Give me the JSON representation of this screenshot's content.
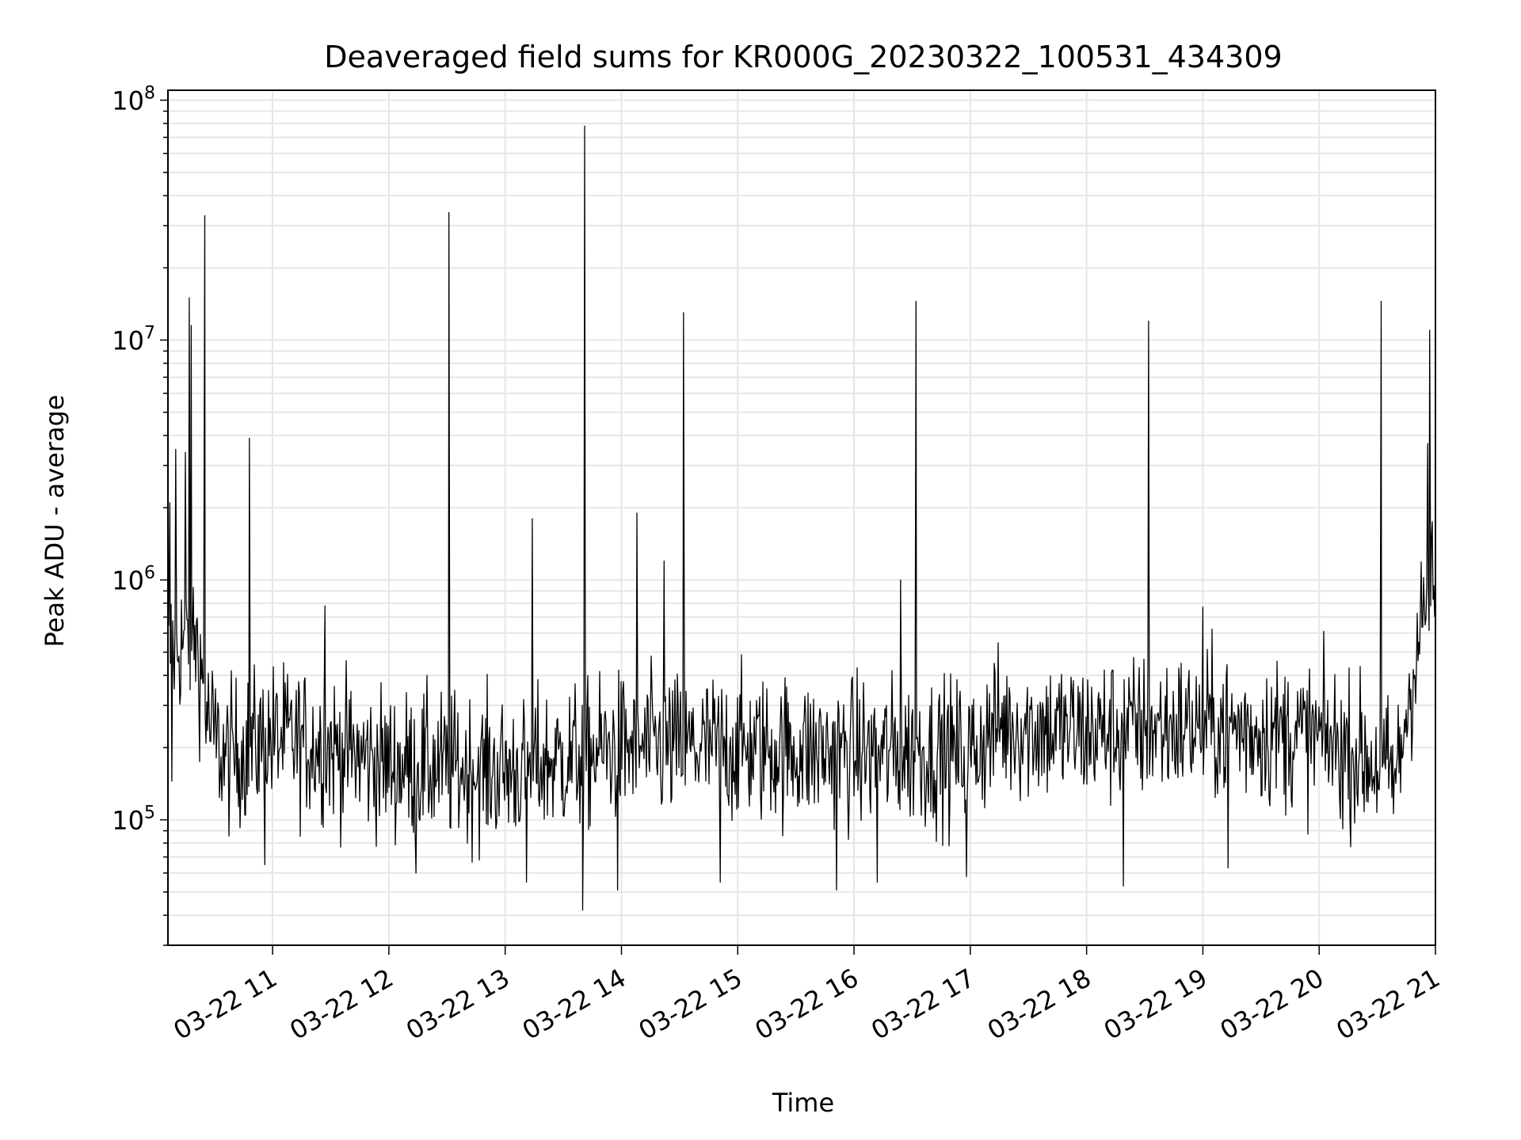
{
  "chart_data": {
    "type": "line",
    "title": "Deaveraged field sums for KR000G_20230322_100531_434309",
    "xlabel": "Time",
    "ylabel": "Peak ADU - average",
    "yscale": "log",
    "ylim": [
      30000,
      110000000
    ],
    "xlim": [
      "2023-03-22 10:06",
      "2023-03-22 21:00"
    ],
    "grid": true,
    "line_color": "#000000",
    "grid_color": "#e6e6e6",
    "x_ticks": [
      {
        "value": "2023-03-22 11:00",
        "label": "03-22 11"
      },
      {
        "value": "2023-03-22 12:00",
        "label": "03-22 12"
      },
      {
        "value": "2023-03-22 13:00",
        "label": "03-22 13"
      },
      {
        "value": "2023-03-22 14:00",
        "label": "03-22 14"
      },
      {
        "value": "2023-03-22 15:00",
        "label": "03-22 15"
      },
      {
        "value": "2023-03-22 16:00",
        "label": "03-22 16"
      },
      {
        "value": "2023-03-22 17:00",
        "label": "03-22 17"
      },
      {
        "value": "2023-03-22 18:00",
        "label": "03-22 18"
      },
      {
        "value": "2023-03-22 19:00",
        "label": "03-22 19"
      },
      {
        "value": "2023-03-22 20:00",
        "label": "03-22 20"
      },
      {
        "value": "2023-03-22 21:00",
        "label": "03-22 21"
      }
    ],
    "y_ticks": [
      {
        "value": 100000,
        "base": "10",
        "exp": "5"
      },
      {
        "value": 1000000,
        "base": "10",
        "exp": "6"
      },
      {
        "value": 10000000,
        "base": "10",
        "exp": "7"
      },
      {
        "value": 100000000,
        "base": "10",
        "exp": "8"
      }
    ],
    "baseline": [
      [
        "2023-03-22 10:06",
        500000
      ],
      [
        "2023-03-22 10:20",
        600000
      ],
      [
        "2023-03-22 10:27",
        250000
      ],
      [
        "2023-03-22 10:35",
        180000
      ],
      [
        "2023-03-22 11:00",
        220000
      ],
      [
        "2023-03-22 11:30",
        200000
      ],
      [
        "2023-03-22 12:00",
        170000
      ],
      [
        "2023-03-22 13:00",
        160000
      ],
      [
        "2023-03-22 14:00",
        200000
      ],
      [
        "2023-03-22 15:00",
        200000
      ],
      [
        "2023-03-22 16:00",
        190000
      ],
      [
        "2023-03-22 17:00",
        190000
      ],
      [
        "2023-03-22 17:15",
        250000
      ],
      [
        "2023-03-22 18:00",
        230000
      ],
      [
        "2023-03-22 19:00",
        250000
      ],
      [
        "2023-03-22 20:00",
        220000
      ],
      [
        "2023-03-22 20:30",
        170000
      ],
      [
        "2023-03-22 20:40",
        150000
      ],
      [
        "2023-03-22 20:48",
        400000
      ],
      [
        "2023-03-22 20:55",
        800000
      ],
      [
        "2023-03-22 21:00",
        900000
      ]
    ],
    "noise_spread": 0.28,
    "spikes": [
      [
        "2023-03-22 10:07",
        2100000
      ],
      [
        "2023-03-22 10:10",
        3500000
      ],
      [
        "2023-03-22 10:15",
        3400000
      ],
      [
        "2023-03-22 10:17",
        15000000
      ],
      [
        "2023-03-22 10:18",
        11500000
      ],
      [
        "2023-03-22 10:25",
        33000000
      ],
      [
        "2023-03-22 10:48",
        3900000
      ],
      [
        "2023-03-22 11:27",
        780000
      ],
      [
        "2023-03-22 12:31",
        34000000
      ],
      [
        "2023-03-22 13:14",
        1800000
      ],
      [
        "2023-03-22 13:41",
        78000000
      ],
      [
        "2023-03-22 14:08",
        1900000
      ],
      [
        "2023-03-22 14:22",
        1200000
      ],
      [
        "2023-03-22 14:32",
        13000000
      ],
      [
        "2023-03-22 16:24",
        1000000
      ],
      [
        "2023-03-22 16:32",
        14500000
      ],
      [
        "2023-03-22 18:32",
        12000000
      ],
      [
        "2023-03-22 19:00",
        770000
      ],
      [
        "2023-03-22 20:32",
        14500000
      ],
      [
        "2023-03-22 20:56",
        3700000
      ],
      [
        "2023-03-22 20:57",
        11000000
      ]
    ],
    "dips": [
      [
        "2023-03-22 10:08",
        145000
      ],
      [
        "2023-03-22 10:56",
        65000
      ],
      [
        "2023-03-22 12:14",
        60000
      ],
      [
        "2023-03-22 13:11",
        55000
      ],
      [
        "2023-03-22 13:40",
        42000
      ],
      [
        "2023-03-22 13:58",
        51000
      ],
      [
        "2023-03-22 14:51",
        55000
      ],
      [
        "2023-03-22 15:51",
        51000
      ],
      [
        "2023-03-22 16:12",
        55000
      ],
      [
        "2023-03-22 16:58",
        58000
      ],
      [
        "2023-03-22 18:19",
        53000
      ],
      [
        "2023-03-22 19:13",
        63000
      ]
    ]
  }
}
